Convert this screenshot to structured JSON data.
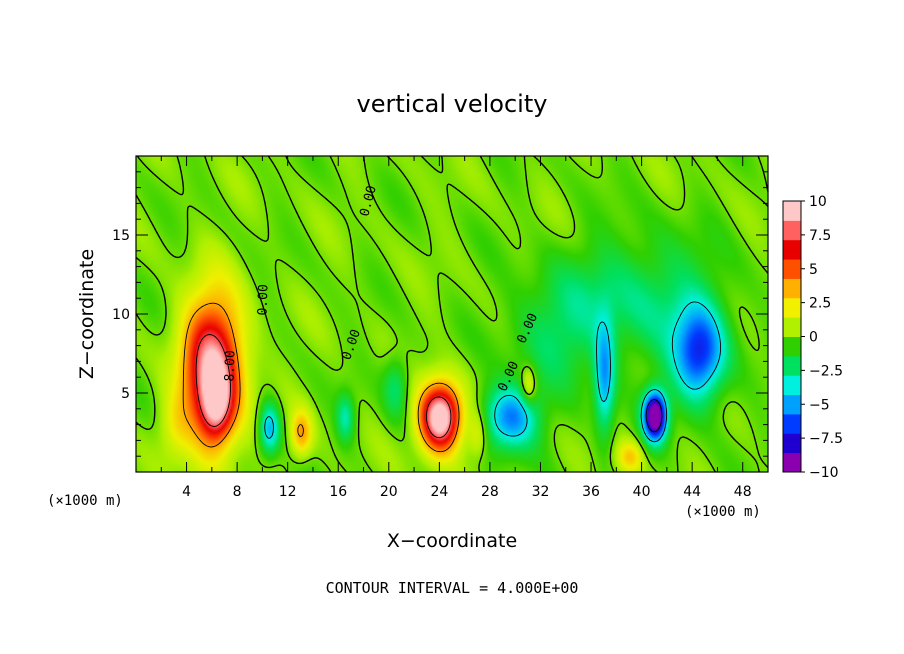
{
  "chart_data": {
    "type": "heatmap",
    "title": "vertical velocity",
    "xlabel": "X−coordinate",
    "ylabel": "Z−coordinate",
    "x_unit_label": "(×1000 m)",
    "x_unit_label_right": "(×1000 m)",
    "footer": "CONTOUR INTERVAL = 4.000E+00",
    "xlim": [
      0,
      50
    ],
    "ylim": [
      0,
      20
    ],
    "x_ticks": [
      4,
      8,
      12,
      16,
      20,
      24,
      28,
      32,
      36,
      40,
      44,
      48
    ],
    "x_tick_labels": [
      "4",
      "8",
      "12",
      "16",
      "20",
      "24",
      "28",
      "32",
      "36",
      "40",
      "44",
      "48"
    ],
    "y_ticks": [
      5,
      10,
      15
    ],
    "y_tick_labels": [
      "5",
      "10",
      "15"
    ],
    "colorbar": {
      "range": [
        -10,
        10
      ],
      "ticks": [
        10,
        7.5,
        5,
        2.5,
        0,
        -2.5,
        -5,
        -7.5,
        -10
      ],
      "tick_labels": [
        "10",
        "7.5",
        "5",
        "2.5",
        "0",
        "−2.5",
        "−5",
        "−7.5",
        "−10"
      ],
      "colors": [
        "#8a00b0",
        "#1f00d0",
        "#003cff",
        "#00a0ff",
        "#00f0e0",
        "#00e060",
        "#30d000",
        "#b0f000",
        "#f0f000",
        "#ffb000",
        "#ff5000",
        "#e80000",
        "#ff6060",
        "#ffc8c8"
      ]
    },
    "contour_labels": [
      "0.00",
      "0.00",
      "0.00",
      "8.00",
      "0.00",
      "0.00"
    ],
    "features": [
      {
        "x": 6.0,
        "z": 6.5,
        "value": 12,
        "kind": "updraft"
      },
      {
        "x": 24.0,
        "z": 3.5,
        "value": 12,
        "kind": "updraft"
      },
      {
        "x": 41.0,
        "z": 3.8,
        "value": -12,
        "kind": "downdraft"
      },
      {
        "x": 44.5,
        "z": 7.5,
        "value": -7,
        "kind": "downdraft"
      },
      {
        "x": 30.0,
        "z": 3.5,
        "value": -6,
        "kind": "downdraft"
      },
      {
        "x": 37.0,
        "z": 6.0,
        "value": -5,
        "kind": "downdraft"
      },
      {
        "x": 10.5,
        "z": 2.5,
        "value": -5,
        "kind": "downdraft"
      },
      {
        "x": 13.0,
        "z": 2.5,
        "value": 4,
        "kind": "updraft"
      }
    ]
  }
}
